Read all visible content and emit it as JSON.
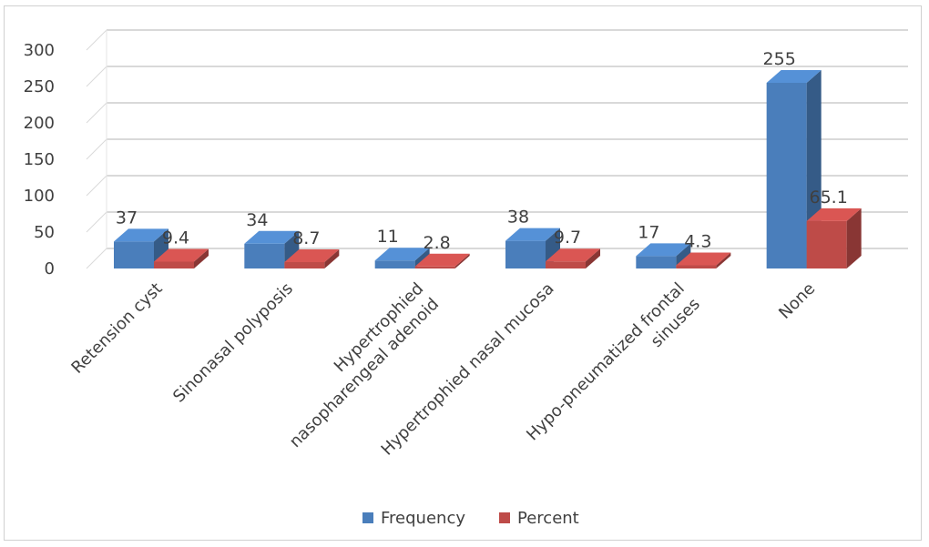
{
  "chart_data": {
    "type": "bar",
    "categories": [
      "Retension cyst",
      "Sinonasal polyposis",
      "Hypertrophied nasopharengeal adenoid",
      "Hypertrophied nasal mucosa",
      "Hypo-pneumatized frontal sinuses",
      "None"
    ],
    "category_lines": [
      [
        "Retension cyst"
      ],
      [
        "Sinonasal polyposis"
      ],
      [
        "Hypertrophied",
        "nasopharengeal adenoid"
      ],
      [
        "Hypertrophied nasal mucosa"
      ],
      [
        "Hypo-pneumatized frontal",
        "sinuses"
      ],
      [
        "None"
      ]
    ],
    "series": [
      {
        "name": "Frequency",
        "values": [
          37,
          34,
          11,
          38,
          17,
          255
        ],
        "labels": [
          "37",
          "34",
          "11",
          "38",
          "17",
          "255"
        ],
        "color": "#4a7ebb"
      },
      {
        "name": "Percent",
        "values": [
          9.4,
          8.7,
          2.8,
          9.7,
          4.3,
          65.1
        ],
        "labels": [
          "9.4",
          "8.7",
          "2.8",
          "9.7",
          "4.3",
          "65.1"
        ],
        "color": "#be4b48"
      }
    ],
    "yticks": [
      "0",
      "50",
      "100",
      "150",
      "200",
      "250",
      "300"
    ],
    "ylim": [
      0,
      300
    ],
    "grid": true,
    "legend_position": "bottom",
    "style": "3d-clustered-column"
  }
}
